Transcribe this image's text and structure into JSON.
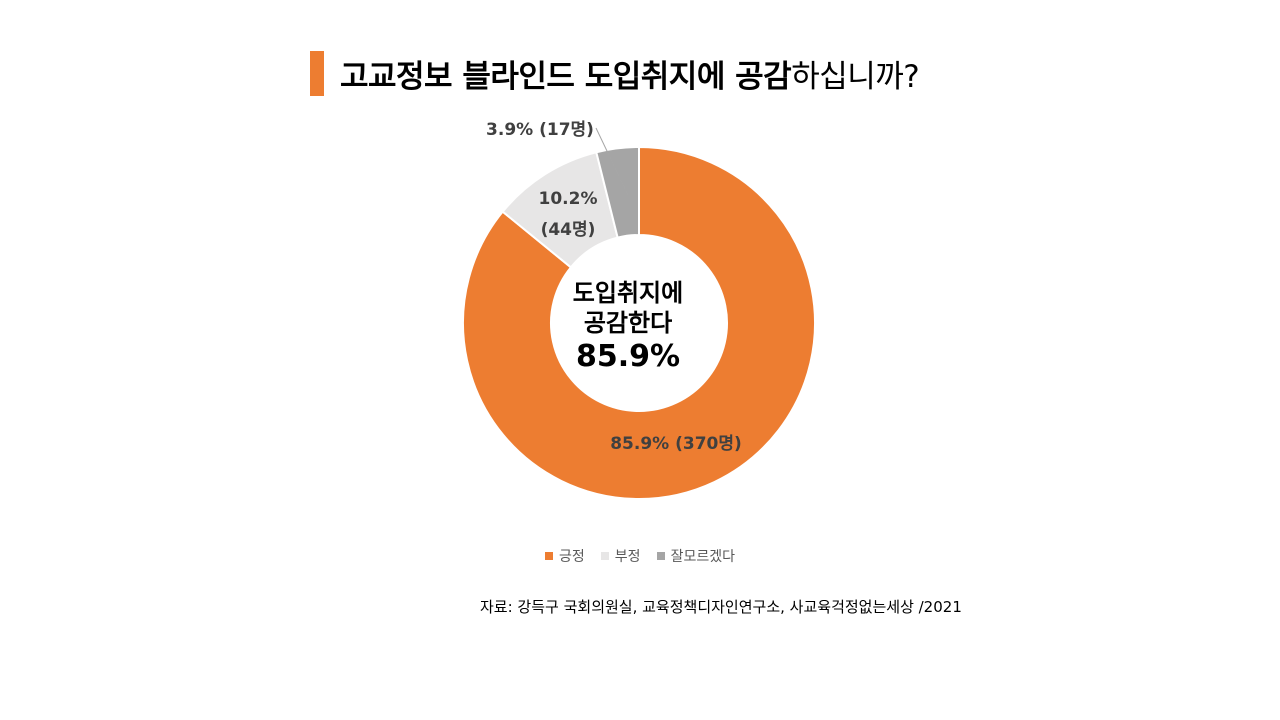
{
  "title": {
    "bold_part": "고교정보 블라인드 도입취지에 공감",
    "light_part": "하십니까?",
    "bar_color": "#ED7D31"
  },
  "chart_data": {
    "type": "pie",
    "variant": "donut",
    "series": [
      {
        "name": "긍정",
        "value": 85.9,
        "count_label": "85.9% (370명)",
        "color": "#ED7D31"
      },
      {
        "name": "부정",
        "value": 10.2,
        "count_label_line1": "10.2%",
        "count_label_line2": "(44명)",
        "color": "#E7E6E6"
      },
      {
        "name": "잘모르겠다",
        "value": 3.9,
        "count_label": "3.9% (17명)",
        "color": "#A5A5A5"
      }
    ],
    "center_label_line1": "도입취지에",
    "center_label_line2": "공감한다",
    "center_value": "85.9%",
    "legend_position": "bottom"
  },
  "legend": [
    {
      "label": "긍정",
      "color": "#ED7D31"
    },
    {
      "label": "부정",
      "color": "#E7E6E6"
    },
    {
      "label": "잘모르겠다",
      "color": "#A5A5A5"
    }
  ],
  "source": "자료: 강득구 국회의원실, 교육정책디자인연구소, 사교육걱정없는세상 /2021"
}
